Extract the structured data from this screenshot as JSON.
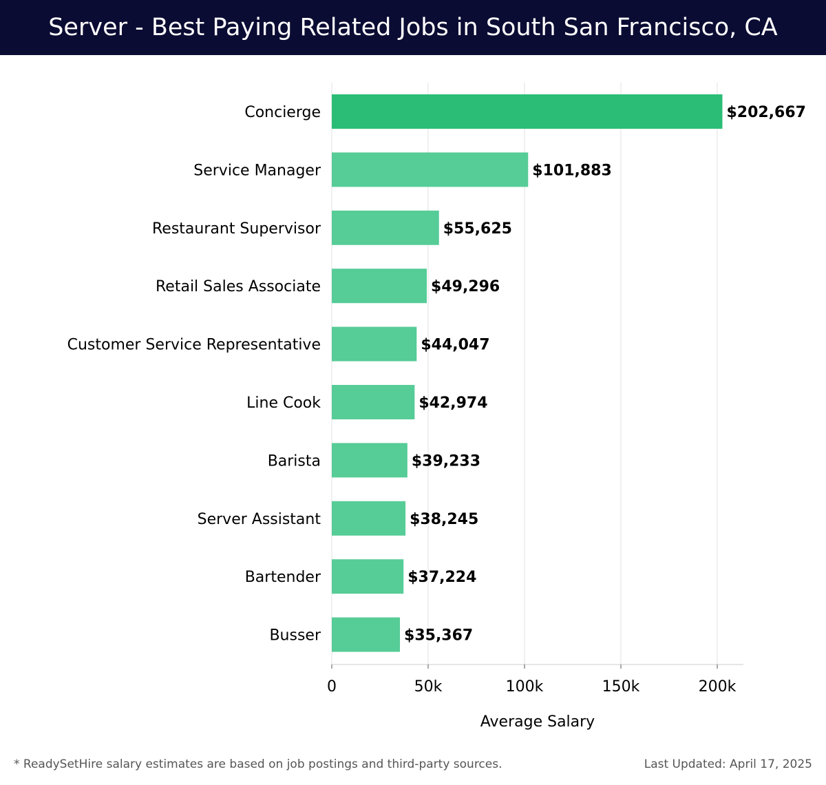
{
  "header": {
    "title": "Server - Best Paying Related Jobs in South San Francisco, CA"
  },
  "chart_data": {
    "type": "bar",
    "orientation": "horizontal",
    "title": "Server - Best Paying Related Jobs in South San Francisco, CA",
    "xlabel": "Average Salary",
    "ylabel": "",
    "xlim": [
      0,
      213000
    ],
    "x_ticks": [
      0,
      50000,
      100000,
      150000,
      200000
    ],
    "x_tick_labels": [
      "0",
      "50k",
      "100k",
      "150k",
      "200k"
    ],
    "grid": "vertical",
    "categories": [
      "Concierge",
      "Service Manager",
      "Restaurant Supervisor",
      "Retail Sales Associate",
      "Customer Service Representative",
      "Line Cook",
      "Barista",
      "Server Assistant",
      "Bartender",
      "Busser"
    ],
    "values": [
      202667,
      101883,
      55625,
      49296,
      44047,
      42974,
      39233,
      38245,
      37224,
      35367
    ],
    "value_labels": [
      "$202,667",
      "$101,883",
      "$55,625",
      "$49,296",
      "$44,047",
      "$42,974",
      "$39,233",
      "$38,245",
      "$37,224",
      "$35,367"
    ],
    "colors": {
      "top_bar": "#2bbd76",
      "bar": "#56cc97",
      "grid": "#e0e0e0",
      "axis": "#cccccc"
    }
  },
  "footer": {
    "note": "* ReadySetHire salary estimates are based on job postings and third-party sources.",
    "updated_label": "Last Updated:",
    "updated_date": "April 17, 2025"
  },
  "colors": {
    "header_bg": "#0b0c33",
    "header_text": "#ffffff"
  }
}
